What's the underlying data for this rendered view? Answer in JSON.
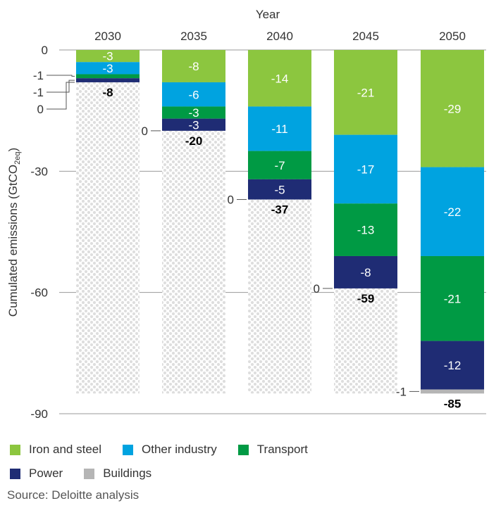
{
  "chart_data": {
    "type": "bar",
    "stacked": true,
    "x_axis_title": "Year",
    "y_axis_title_parts": [
      "Cumulated emissions (GtCO",
      "2eq",
      ")"
    ],
    "ylim": [
      -90,
      0
    ],
    "yticks": [
      0,
      -30,
      -60,
      -90
    ],
    "ytick_labels": [
      "0",
      "-30",
      "-60",
      "-90"
    ],
    "grid": true,
    "legend_position": "bottom",
    "categories": [
      "2030",
      "2035",
      "2040",
      "2045",
      "2050"
    ],
    "series": [
      {
        "name": "Iron and steel",
        "color": "#8CC63F",
        "values": [
          -3,
          -8,
          -14,
          -21,
          -29
        ]
      },
      {
        "name": "Other industry",
        "color": "#00A3E0",
        "values": [
          -3,
          -6,
          -11,
          -17,
          -22
        ]
      },
      {
        "name": "Transport",
        "color": "#009A44",
        "values": [
          -1,
          -3,
          -7,
          -13,
          -21
        ]
      },
      {
        "name": "Power",
        "color": "#1F2C74",
        "values": [
          -1,
          -3,
          -5,
          -8,
          -12
        ]
      },
      {
        "name": "Buildings",
        "color": "#B5B5B5",
        "values": [
          0,
          0,
          0,
          0,
          -1
        ]
      }
    ],
    "segment_labels": [
      [
        "-3",
        "-3",
        "",
        "",
        ""
      ],
      [
        "-8",
        "-6",
        "-3",
        "-3",
        ""
      ],
      [
        "-14",
        "-11",
        "-7",
        "-5",
        ""
      ],
      [
        "-21",
        "-17",
        "-13",
        "-8",
        ""
      ],
      [
        "-29",
        "-22",
        "-21",
        "-12",
        ""
      ]
    ],
    "callouts": [
      {
        "bar": 0,
        "series": 2,
        "text": "-1"
      },
      {
        "bar": 0,
        "series": 3,
        "text": "-1"
      },
      {
        "bar": 0,
        "series": 4,
        "text": "0"
      },
      {
        "bar": 1,
        "series": 4,
        "text": "0"
      },
      {
        "bar": 2,
        "series": 4,
        "text": "0"
      },
      {
        "bar": 3,
        "series": 4,
        "text": "0"
      },
      {
        "bar": 4,
        "series": 4,
        "text": "-1"
      }
    ],
    "totals": [
      "-8",
      "-20",
      "-37",
      "-59",
      "-85"
    ],
    "total_final": -85
  },
  "legend": [
    {
      "label": "Iron and steel",
      "color": "#8CC63F"
    },
    {
      "label": "Other industry",
      "color": "#00A3E0"
    },
    {
      "label": "Transport",
      "color": "#009A44"
    },
    {
      "label": "Power",
      "color": "#1F2C74"
    },
    {
      "label": "Buildings",
      "color": "#B5B5B5"
    }
  ],
  "source": "Source: Deloitte analysis"
}
